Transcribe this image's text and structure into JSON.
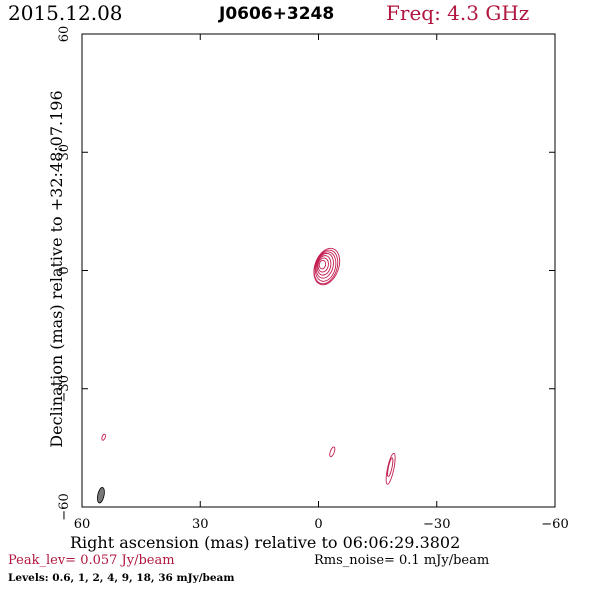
{
  "header": {
    "date": "2015.12.08",
    "source": "J0606+3248",
    "freq": "Freq: 4.3 GHz"
  },
  "footer": {
    "peak": "Peak_lev=  0.057 Jy/beam",
    "rms": "Rms_noise=  0.1 mJy/beam",
    "levels": "Levels: 0.6,   1,   2,   4,   9,  18,  36 mJy/beam"
  },
  "colors": {
    "accent": "#b0163f",
    "contour": "#c41e50",
    "beam": "#777777",
    "axis": "#000000",
    "background": "#ffffff"
  },
  "chart_data": {
    "type": "contour",
    "title": "J0606+3248",
    "xlabel": "Right ascension (mas) relative to 06:06:29.3802",
    "ylabel": "Declination (mas) relative to +32:48:07.196",
    "xlim": [
      60,
      -60
    ],
    "ylim": [
      -60,
      60
    ],
    "x_ticks": [
      60,
      30,
      0,
      -30,
      -60
    ],
    "y_ticks": [
      60,
      30,
      0,
      -30,
      -60
    ],
    "x_tick_labels": [
      "60",
      "30",
      "0",
      "−30",
      "−60"
    ],
    "y_tick_labels": [
      "60",
      "30",
      "0",
      "−30",
      "−60"
    ],
    "contour_levels_mJy": [
      0.6,
      1,
      2,
      4,
      9,
      18,
      36
    ],
    "peak_Jy_per_beam": 0.057,
    "rms_noise_mJy_per_beam": 0.1,
    "components": [
      {
        "center": [
          -1.5,
          1.0
        ],
        "contours": [
          {
            "semi_major": 4.8,
            "semi_minor": 3.0,
            "pa_deg": 20,
            "offset": [
              -0.6,
              0.0
            ]
          },
          {
            "semi_major": 4.4,
            "semi_minor": 2.8,
            "pa_deg": 18,
            "offset": [
              -0.4,
              -0.1
            ]
          },
          {
            "semi_major": 3.8,
            "semi_minor": 2.5,
            "pa_deg": 15,
            "offset": [
              -0.3,
              0.0
            ]
          },
          {
            "semi_major": 3.2,
            "semi_minor": 2.1,
            "pa_deg": 15,
            "offset": [
              -0.1,
              0.2
            ]
          },
          {
            "semi_major": 2.5,
            "semi_minor": 1.7,
            "pa_deg": 12,
            "offset": [
              0.1,
              0.3
            ]
          },
          {
            "semi_major": 1.8,
            "semi_minor": 1.3,
            "pa_deg": 12,
            "offset": [
              0.3,
              0.4
            ]
          },
          {
            "semi_major": 1.1,
            "semi_minor": 0.8,
            "pa_deg": 10,
            "offset": [
              0.5,
              0.5
            ]
          }
        ]
      },
      {
        "center": [
          -18.3,
          -50.3
        ],
        "contours": [
          {
            "semi_major": 4.0,
            "semi_minor": 0.8,
            "pa_deg": 12,
            "offset": [
              0,
              0
            ]
          },
          {
            "semi_major": 2.4,
            "semi_minor": 0.45,
            "pa_deg": 12,
            "offset": [
              0.1,
              0.4
            ]
          }
        ]
      },
      {
        "center": [
          -3.5,
          -46.0
        ],
        "contours": [
          {
            "semi_major": 1.3,
            "semi_minor": 0.5,
            "pa_deg": 20,
            "offset": [
              0,
              0
            ]
          }
        ]
      },
      {
        "center": [
          54.5,
          -42.3
        ],
        "contours": [
          {
            "semi_major": 0.8,
            "semi_minor": 0.4,
            "pa_deg": 20,
            "offset": [
              0,
              0
            ]
          }
        ]
      }
    ],
    "beam": {
      "center": [
        55.2,
        -57.0
      ],
      "semi_major": 2.0,
      "semi_minor": 0.8,
      "pa_deg": 12
    }
  }
}
